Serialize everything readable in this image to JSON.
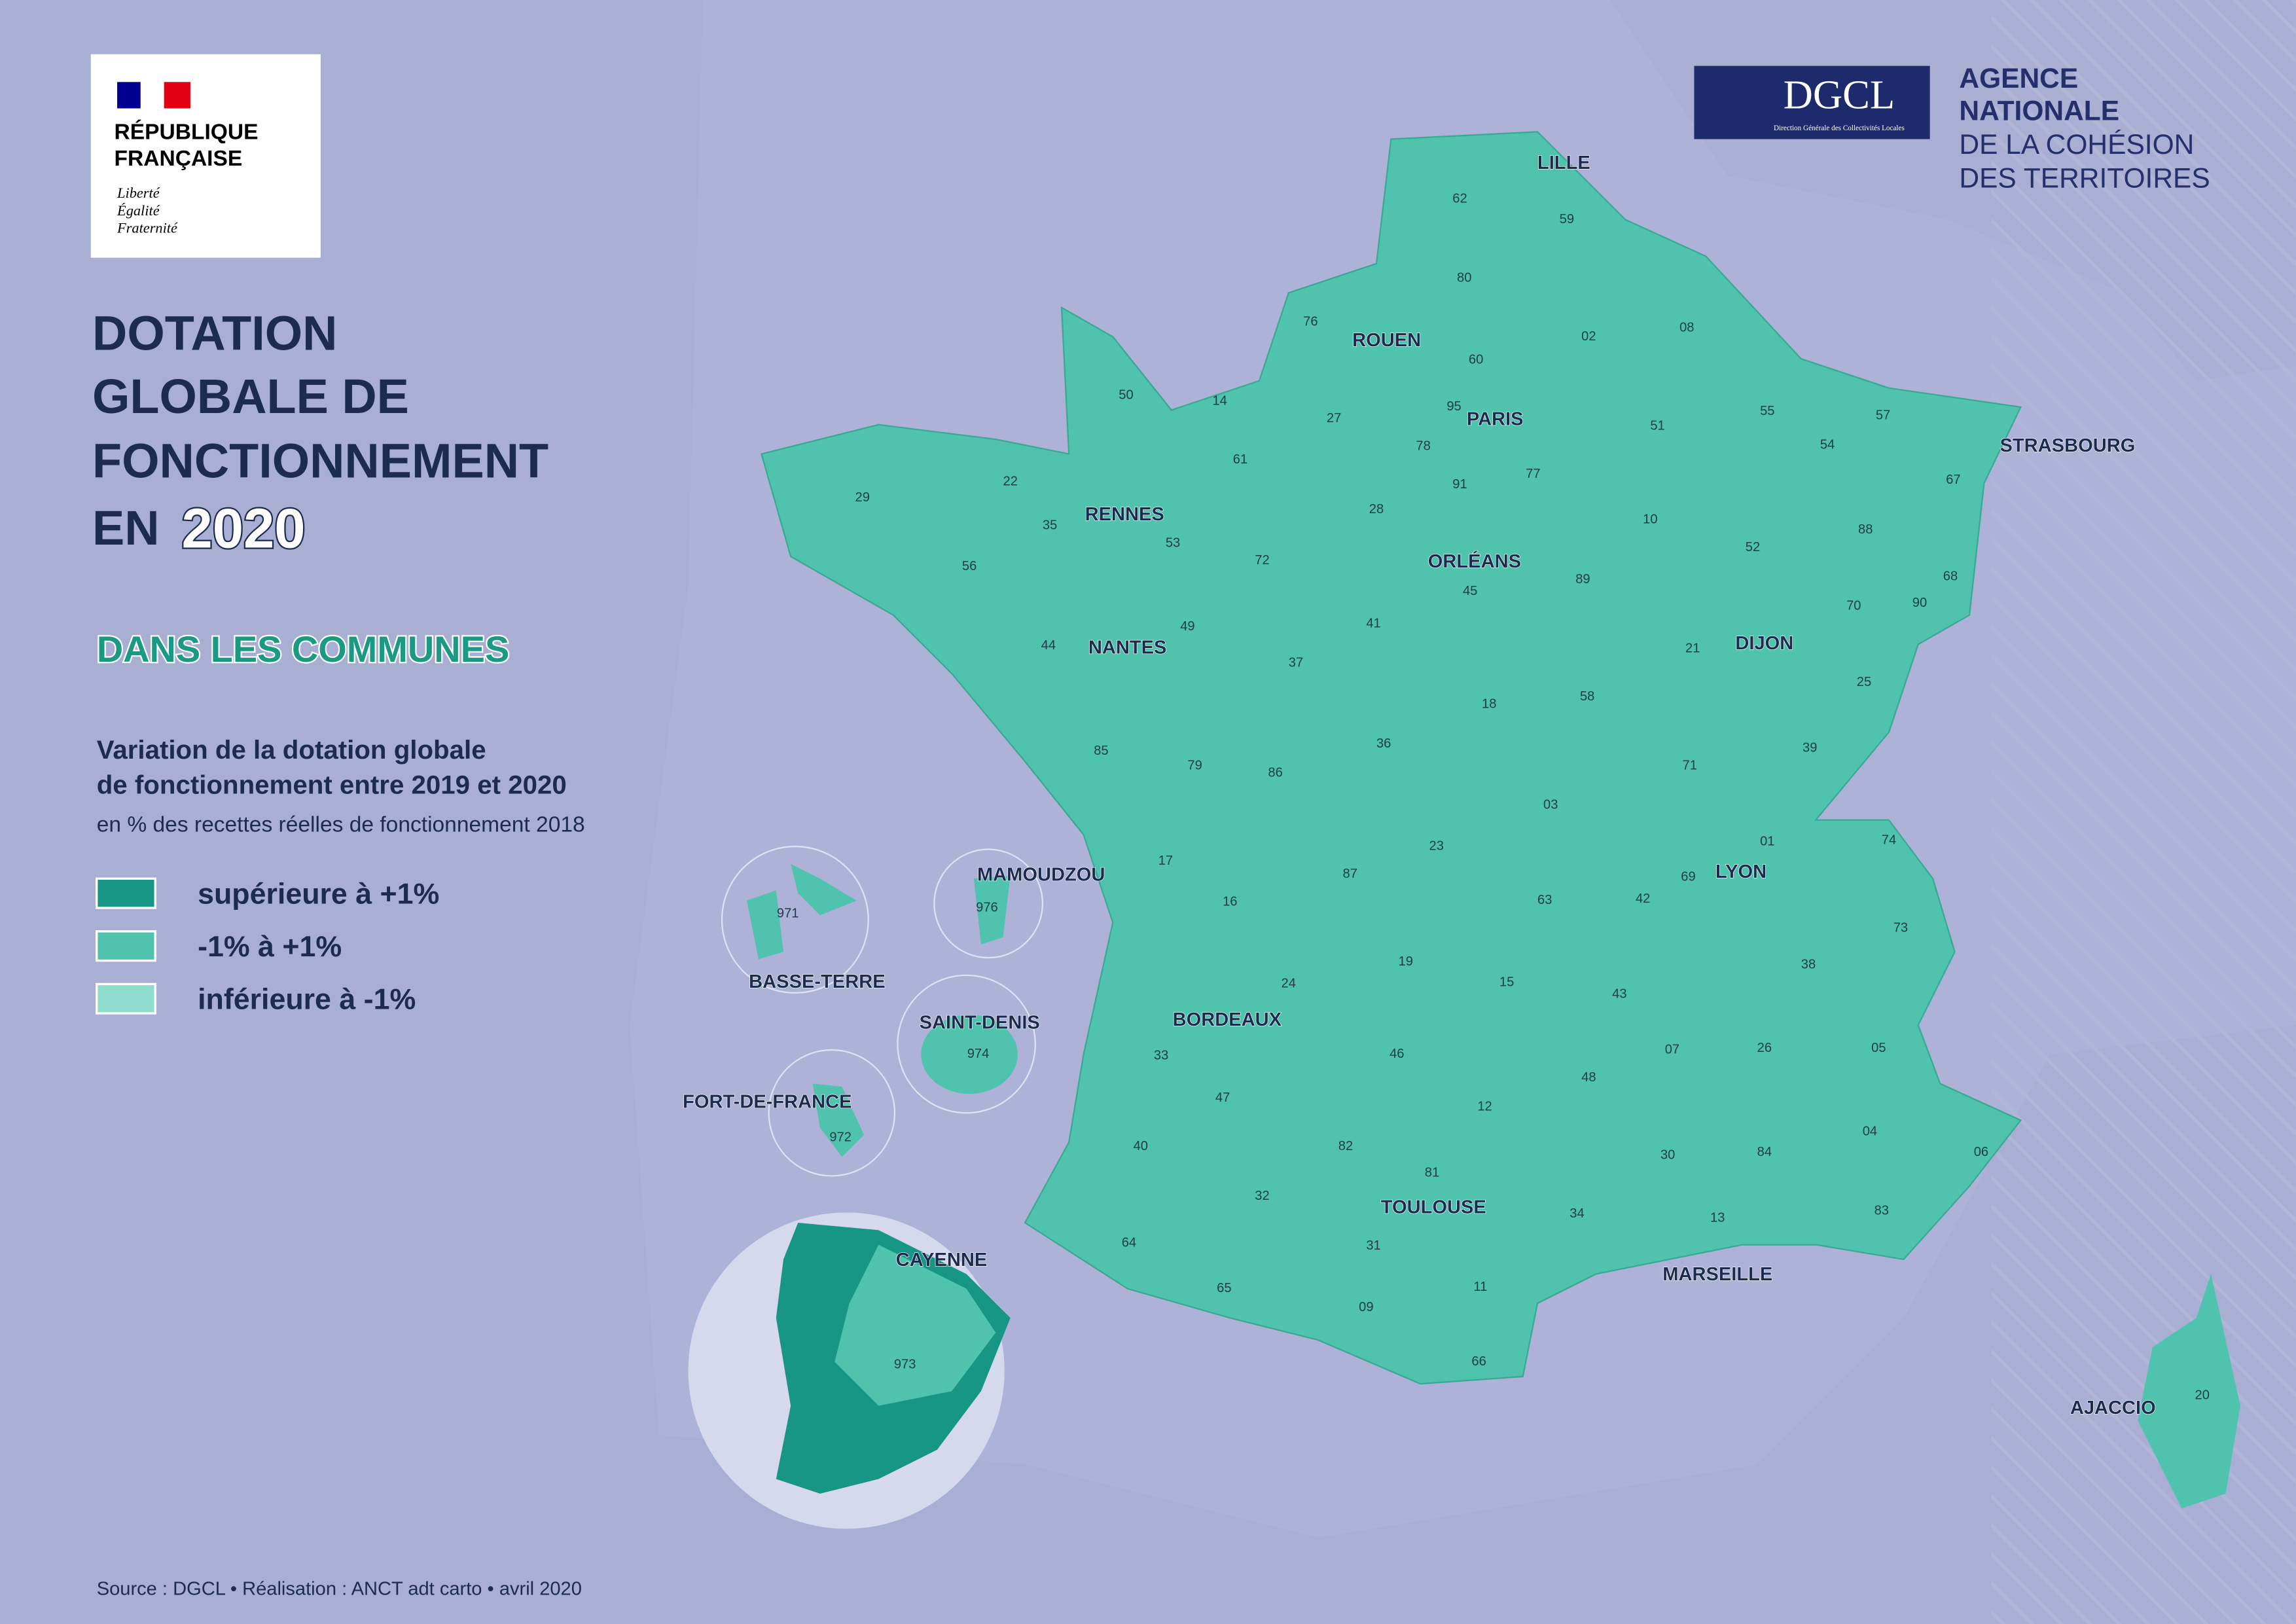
{
  "header": {
    "logo": {
      "lines": [
        "RÉPUBLIQUE",
        "FRANÇAISE"
      ],
      "motto": [
        "Liberté",
        "Égalité",
        "Fraternité"
      ]
    },
    "dgcl": {
      "name": "DGCL",
      "subtitle": "Direction Générale des Collectivités Locales"
    },
    "agency": [
      "AGENCE",
      "NATIONALE",
      "DE LA COHÉSION",
      "DES TERRITOIRES"
    ]
  },
  "title": {
    "lines": [
      "DOTATION",
      "GLOBALE DE",
      "FONCTIONNEMENT",
      "EN"
    ],
    "year": "2020"
  },
  "subtitle": "DANS LES COMMUNES",
  "legend": {
    "title": [
      "Variation de la dotation globale",
      "de fonctionnement entre 2019 et 2020"
    ],
    "note": "en % des recettes réelles de fonctionnement 2018",
    "items": [
      {
        "label": "supérieure à +1%",
        "color": "#179585"
      },
      {
        "label": "-1% à +1%",
        "color": "#4fc3ae"
      },
      {
        "label": "inférieure à -1%",
        "color": "#8edccd"
      }
    ]
  },
  "cities": [
    "LILLE",
    "ROUEN",
    "PARIS",
    "STRASBOURG",
    "RENNES",
    "ORLÉANS",
    "NANTES",
    "DIJON",
    "LYON",
    "BORDEAUX",
    "TOULOUSE",
    "MARSEILLE",
    "AJACCIO",
    "MAMOUDZOU",
    "BASSE-TERRE",
    "SAINT-DENIS",
    "FORT-DE-FRANCE",
    "CAYENNE"
  ],
  "departments": [
    "62",
    "59",
    "80",
    "76",
    "02",
    "08",
    "60",
    "50",
    "14",
    "27",
    "95",
    "78",
    "51",
    "55",
    "57",
    "54",
    "67",
    "61",
    "22",
    "29",
    "35",
    "53",
    "91",
    "77",
    "28",
    "10",
    "52",
    "88",
    "72",
    "56",
    "45",
    "89",
    "68",
    "70",
    "90",
    "44",
    "49",
    "41",
    "37",
    "21",
    "25",
    "58",
    "18",
    "85",
    "79",
    "86",
    "36",
    "71",
    "39",
    "03",
    "23",
    "01",
    "74",
    "17",
    "16",
    "87",
    "63",
    "42",
    "69",
    "73",
    "38",
    "19",
    "24",
    "15",
    "43",
    "33",
    "46",
    "07",
    "26",
    "05",
    "48",
    "47",
    "12",
    "04",
    "40",
    "82",
    "30",
    "84",
    "06",
    "81",
    "32",
    "34",
    "13",
    "83",
    "64",
    "31",
    "65",
    "11",
    "09",
    "66",
    "20",
    "971",
    "976",
    "974",
    "972",
    "973"
  ],
  "source": "Source : DGCL • Réalisation : ANCT adt carto • avril 2020"
}
